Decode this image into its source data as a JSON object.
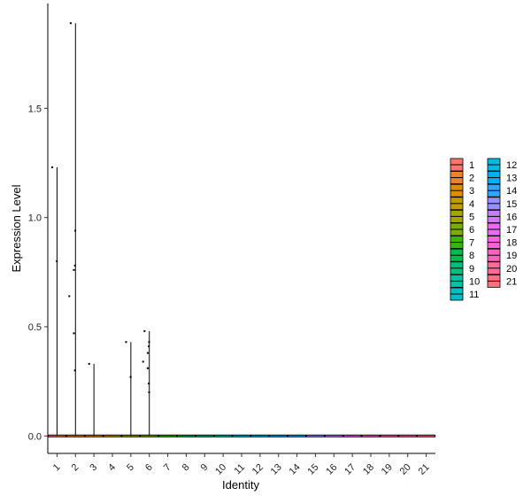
{
  "chart_data": {
    "type": "violin",
    "xlabel": "Identity",
    "ylabel": "Expression Level",
    "ylim": [
      -0.08,
      1.98
    ],
    "yticks": [
      0.0,
      0.5,
      1.0,
      1.5
    ],
    "ytick_labels": [
      "0.0",
      "0.5",
      "1.0",
      "1.5"
    ],
    "legend_position": "right",
    "legend_columns": 2,
    "categories": [
      "1",
      "2",
      "3",
      "4",
      "5",
      "6",
      "7",
      "8",
      "9",
      "10",
      "11",
      "12",
      "13",
      "14",
      "15",
      "16",
      "17",
      "18",
      "19",
      "20",
      "21"
    ],
    "colors": [
      "#F8766D",
      "#EA8331",
      "#D89000",
      "#C09B00",
      "#A3A500",
      "#7CAE00",
      "#39B600",
      "#00BB4E",
      "#00BF7D",
      "#00C1A3",
      "#00BFC4",
      "#00BAE0",
      "#00B0F6",
      "#35A2FF",
      "#9590FF",
      "#C77CFF",
      "#E76BF3",
      "#FA62DB",
      "#FF62BC",
      "#FF6A98",
      "#FC717F"
    ],
    "violin_max": [
      1.23,
      1.89,
      0.33,
      0.0,
      0.43,
      0.48,
      0.0,
      0.0,
      0.0,
      0.0,
      0.0,
      0.0,
      0.0,
      0.0,
      0.0,
      0.0,
      0.0,
      0.0,
      0.0,
      0.0,
      0.0
    ],
    "points": [
      {
        "category": "1",
        "values": [
          1.23,
          0.8
        ]
      },
      {
        "category": "2",
        "values": [
          1.89,
          0.94,
          0.78,
          0.76,
          0.64,
          0.47,
          0.3
        ]
      },
      {
        "category": "3",
        "values": [
          0.33
        ]
      },
      {
        "category": "5",
        "values": [
          0.43,
          0.27
        ]
      },
      {
        "category": "6",
        "values": [
          0.48,
          0.43,
          0.41,
          0.38,
          0.34,
          0.31,
          0.24,
          0.2
        ]
      }
    ]
  }
}
